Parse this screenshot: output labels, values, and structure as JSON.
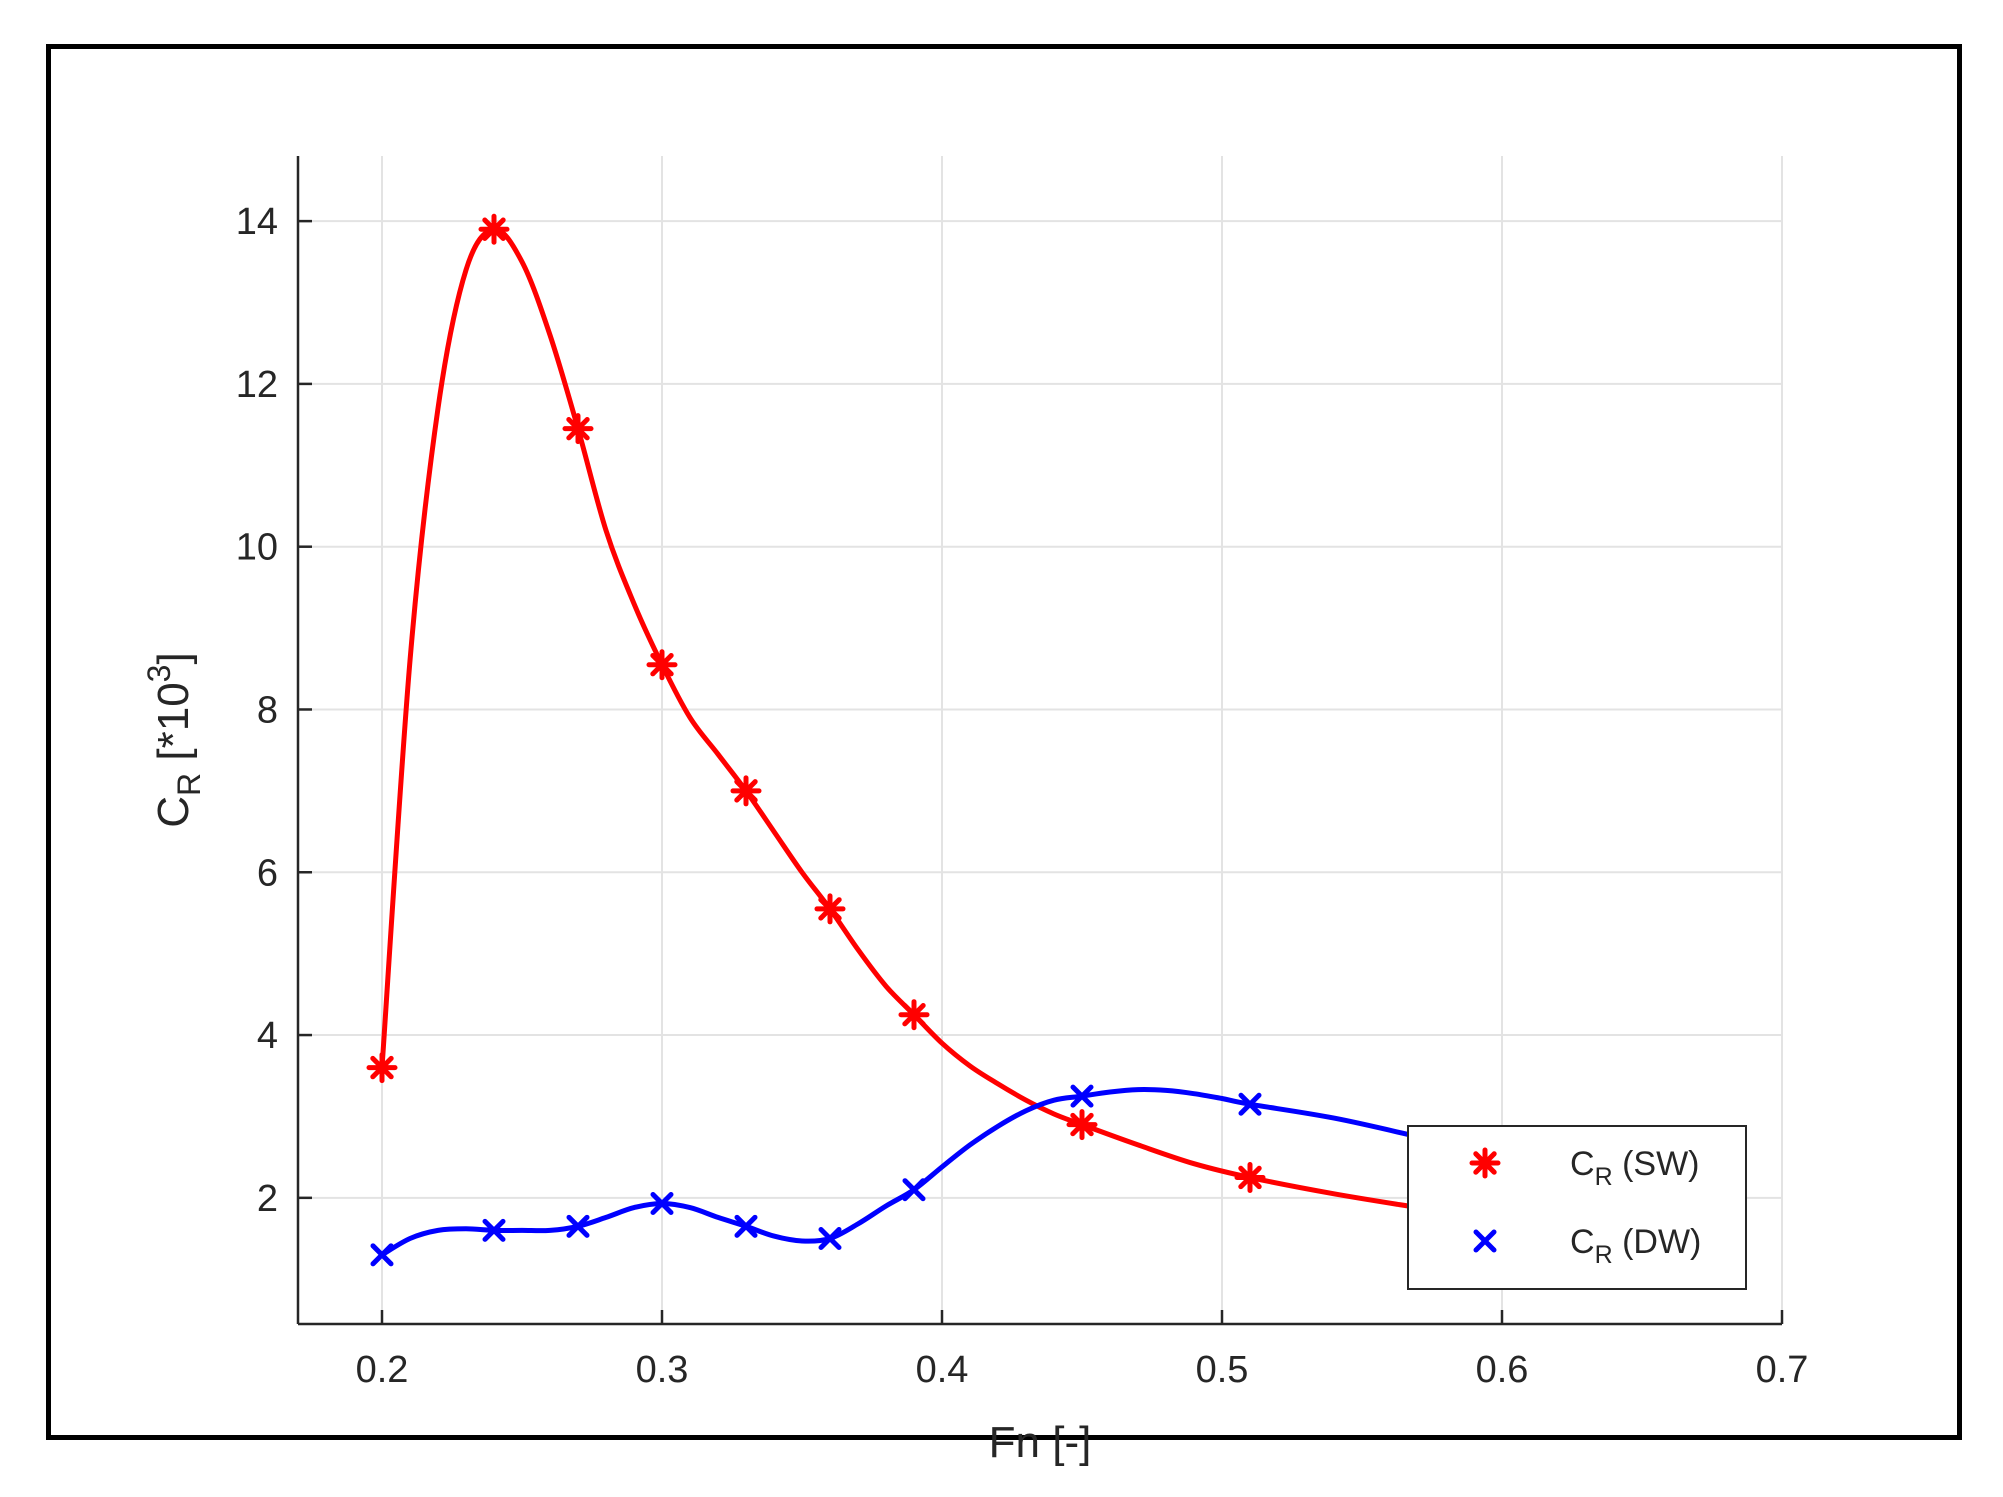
{
  "chart_data": {
    "type": "line",
    "xlabel": "Fn [-]",
    "ylabel": {
      "main": "C",
      "sub": "R",
      "rest": " [*10",
      "sup": "3",
      "end": "]"
    },
    "xlim": [
      0.17,
      0.7
    ],
    "ylim": [
      0.45,
      14.8
    ],
    "xticks": [
      0.2,
      0.3,
      0.4,
      0.5,
      0.6,
      0.7
    ],
    "xtick_labels": [
      "0.2",
      "0.3",
      "0.4",
      "0.5",
      "0.6",
      "0.7"
    ],
    "yticks": [
      2,
      4,
      6,
      8,
      10,
      12,
      14
    ],
    "ytick_labels": [
      "2",
      "4",
      "6",
      "8",
      "10",
      "12",
      "14"
    ],
    "grid": true,
    "legend_position": "bottom-right",
    "series": [
      {
        "name": {
          "main": "C",
          "sub": "R",
          "rest": " (SW)"
        },
        "color": "#ff0000",
        "marker": "asterisk",
        "points": [
          [
            0.2,
            3.6
          ],
          [
            0.24,
            13.9
          ],
          [
            0.27,
            11.45
          ],
          [
            0.3,
            8.55
          ],
          [
            0.33,
            7.0
          ],
          [
            0.36,
            5.55
          ],
          [
            0.39,
            4.25
          ],
          [
            0.45,
            2.9
          ],
          [
            0.51,
            2.25
          ],
          [
            0.6,
            1.72
          ]
        ],
        "curve": [
          [
            0.2,
            3.6
          ],
          [
            0.21,
            8.6
          ],
          [
            0.22,
            11.7
          ],
          [
            0.23,
            13.4
          ],
          [
            0.24,
            13.9
          ],
          [
            0.25,
            13.5
          ],
          [
            0.26,
            12.6
          ],
          [
            0.27,
            11.45
          ],
          [
            0.28,
            10.2
          ],
          [
            0.29,
            9.3
          ],
          [
            0.3,
            8.55
          ],
          [
            0.31,
            7.9
          ],
          [
            0.32,
            7.45
          ],
          [
            0.33,
            7.0
          ],
          [
            0.34,
            6.5
          ],
          [
            0.35,
            6.0
          ],
          [
            0.36,
            5.55
          ],
          [
            0.37,
            5.05
          ],
          [
            0.38,
            4.6
          ],
          [
            0.39,
            4.25
          ],
          [
            0.4,
            3.9
          ],
          [
            0.41,
            3.62
          ],
          [
            0.42,
            3.4
          ],
          [
            0.43,
            3.2
          ],
          [
            0.44,
            3.03
          ],
          [
            0.45,
            2.9
          ],
          [
            0.47,
            2.65
          ],
          [
            0.49,
            2.42
          ],
          [
            0.51,
            2.25
          ],
          [
            0.54,
            2.05
          ],
          [
            0.57,
            1.88
          ],
          [
            0.6,
            1.72
          ]
        ]
      },
      {
        "name": {
          "main": "C",
          "sub": "R",
          "rest": " (DW)"
        },
        "color": "#0000ff",
        "marker": "x",
        "points": [
          [
            0.2,
            1.3
          ],
          [
            0.24,
            1.6
          ],
          [
            0.27,
            1.65
          ],
          [
            0.3,
            1.93
          ],
          [
            0.33,
            1.65
          ],
          [
            0.36,
            1.5
          ],
          [
            0.39,
            2.1
          ],
          [
            0.45,
            3.25
          ],
          [
            0.51,
            3.15
          ],
          [
            0.6,
            2.5
          ]
        ],
        "curve": [
          [
            0.2,
            1.3
          ],
          [
            0.21,
            1.5
          ],
          [
            0.22,
            1.6
          ],
          [
            0.23,
            1.62
          ],
          [
            0.24,
            1.6
          ],
          [
            0.25,
            1.6
          ],
          [
            0.26,
            1.6
          ],
          [
            0.27,
            1.65
          ],
          [
            0.28,
            1.76
          ],
          [
            0.29,
            1.88
          ],
          [
            0.3,
            1.93
          ],
          [
            0.31,
            1.88
          ],
          [
            0.32,
            1.76
          ],
          [
            0.33,
            1.65
          ],
          [
            0.34,
            1.53
          ],
          [
            0.35,
            1.47
          ],
          [
            0.36,
            1.5
          ],
          [
            0.37,
            1.68
          ],
          [
            0.38,
            1.9
          ],
          [
            0.39,
            2.1
          ],
          [
            0.4,
            2.38
          ],
          [
            0.41,
            2.65
          ],
          [
            0.42,
            2.88
          ],
          [
            0.43,
            3.07
          ],
          [
            0.44,
            3.2
          ],
          [
            0.45,
            3.25
          ],
          [
            0.46,
            3.3
          ],
          [
            0.47,
            3.33
          ],
          [
            0.48,
            3.32
          ],
          [
            0.49,
            3.28
          ],
          [
            0.5,
            3.22
          ],
          [
            0.51,
            3.15
          ],
          [
            0.54,
            2.98
          ],
          [
            0.57,
            2.75
          ],
          [
            0.6,
            2.5
          ]
        ]
      }
    ]
  }
}
